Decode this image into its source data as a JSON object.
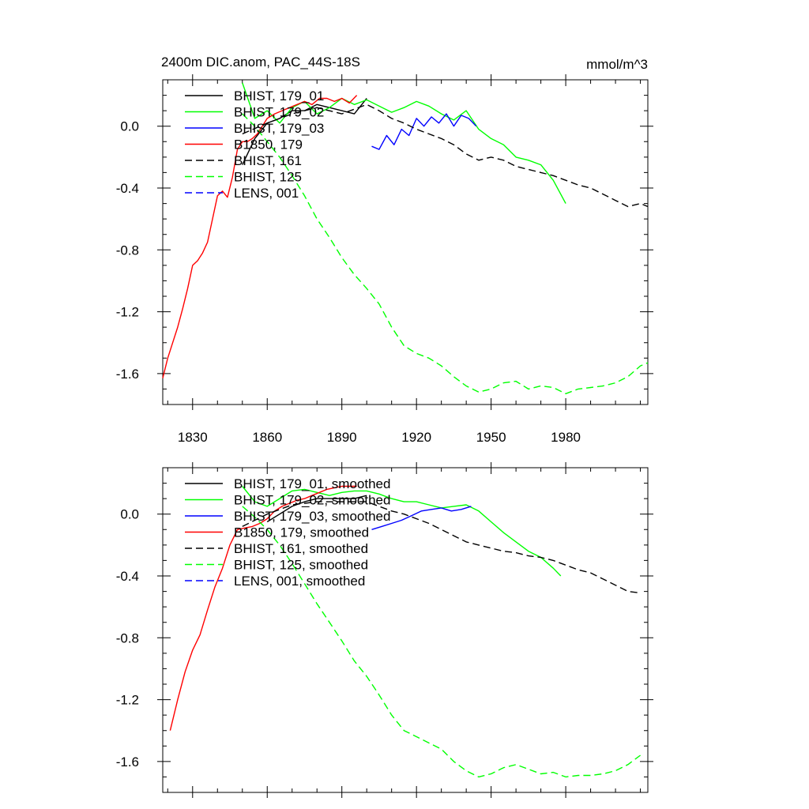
{
  "colors": {
    "black": "#000000",
    "green": "#00ff00",
    "blue": "#0000ff",
    "red": "#ff0000"
  },
  "chart_data": [
    {
      "type": "line",
      "title": "2400m DIC.anom, PAC_44S-18S",
      "units": "mmol/m^3",
      "xlim": [
        1818,
        2013
      ],
      "ylim": [
        -1.8,
        0.3
      ],
      "xticks": [
        1830,
        1860,
        1890,
        1920,
        1950,
        1980
      ],
      "xtick_labels": [
        "1830",
        "1860",
        "1890",
        "1920",
        "1950",
        "1980"
      ],
      "yticks": [
        0.0,
        -0.4,
        -0.8,
        -1.2,
        -1.6
      ],
      "ytick_labels": [
        "0.0",
        "-0.4",
        "-0.8",
        "-1.2",
        "-1.6"
      ],
      "series": [
        {
          "name": "BHIST, 179_01",
          "color": "#000000",
          "dash": "solid",
          "x": [
            1850,
            1855,
            1860,
            1865,
            1870,
            1875,
            1880,
            1885,
            1890,
            1895,
            1900
          ],
          "y": [
            -0.25,
            -0.08,
            0.02,
            0.05,
            0.1,
            0.1,
            0.14,
            0.12,
            0.1,
            0.08,
            0.18
          ]
        },
        {
          "name": "BHIST, 179_02",
          "color": "#00ff00",
          "dash": "solid",
          "x": [
            1850,
            1855,
            1860,
            1865,
            1870,
            1875,
            1880,
            1885,
            1890,
            1895,
            1900,
            1905,
            1910,
            1915,
            1920,
            1925,
            1930,
            1935,
            1940,
            1945,
            1950,
            1955,
            1960,
            1965,
            1970,
            1975,
            1980
          ],
          "y": [
            0.28,
            0.05,
            0.1,
            0.02,
            0.12,
            0.16,
            0.08,
            0.12,
            0.18,
            0.14,
            0.17,
            0.13,
            0.09,
            0.12,
            0.16,
            0.13,
            0.08,
            0.04,
            0.1,
            -0.02,
            -0.08,
            -0.12,
            -0.2,
            -0.22,
            -0.25,
            -0.35,
            -0.5
          ]
        },
        {
          "name": "BHIST, 179_03",
          "color": "#0000ff",
          "dash": "solid",
          "x": [
            1902,
            1905,
            1908,
            1911,
            1914,
            1917,
            1920,
            1923,
            1926,
            1929,
            1932,
            1935,
            1938,
            1941,
            1944
          ],
          "y": [
            -0.13,
            -0.15,
            -0.06,
            -0.12,
            -0.02,
            -0.06,
            0.05,
            0.0,
            0.06,
            0.02,
            0.08,
            0.0,
            0.07,
            0.05,
            0.0
          ]
        },
        {
          "name": "B1850, 179",
          "color": "#ff0000",
          "dash": "solid",
          "x": [
            1818,
            1820,
            1822,
            1824,
            1826,
            1828,
            1830,
            1832,
            1834,
            1836,
            1838,
            1840,
            1842,
            1844,
            1846,
            1848,
            1850,
            1852,
            1854,
            1856,
            1858,
            1860,
            1863,
            1866,
            1869,
            1872,
            1875,
            1878,
            1881,
            1884,
            1887,
            1890,
            1893,
            1896
          ],
          "y": [
            -1.63,
            -1.5,
            -1.4,
            -1.3,
            -1.18,
            -1.05,
            -0.9,
            -0.87,
            -0.82,
            -0.75,
            -0.6,
            -0.45,
            -0.42,
            -0.46,
            -0.33,
            -0.15,
            -0.1,
            -0.1,
            -0.08,
            -0.05,
            0.0,
            0.05,
            0.08,
            0.1,
            0.12,
            0.14,
            0.16,
            0.14,
            0.18,
            0.18,
            0.16,
            0.18,
            0.15,
            0.2
          ]
        },
        {
          "name": "BHIST, 161",
          "color": "#000000",
          "dash": "dashed",
          "x": [
            1850,
            1860,
            1870,
            1880,
            1890,
            1900,
            1905,
            1910,
            1915,
            1920,
            1925,
            1930,
            1935,
            1940,
            1945,
            1950,
            1955,
            1960,
            1965,
            1970,
            1975,
            1980,
            1985,
            1990,
            1995,
            2000,
            2005,
            2010,
            2013
          ],
          "y": [
            -0.05,
            0.02,
            0.08,
            0.12,
            0.08,
            0.14,
            0.1,
            0.05,
            0.02,
            -0.02,
            -0.05,
            -0.08,
            -0.12,
            -0.18,
            -0.22,
            -0.2,
            -0.22,
            -0.26,
            -0.28,
            -0.3,
            -0.32,
            -0.35,
            -0.38,
            -0.4,
            -0.44,
            -0.48,
            -0.52,
            -0.5,
            -0.52
          ]
        },
        {
          "name": "BHIST, 125",
          "color": "#00ff00",
          "dash": "dashed",
          "x": [
            1850,
            1855,
            1860,
            1865,
            1870,
            1875,
            1880,
            1885,
            1890,
            1895,
            1900,
            1905,
            1910,
            1915,
            1920,
            1925,
            1930,
            1935,
            1940,
            1945,
            1950,
            1955,
            1960,
            1965,
            1970,
            1975,
            1980,
            1985,
            1990,
            1995,
            2000,
            2005,
            2010,
            2013
          ],
          "y": [
            0.08,
            0.0,
            -0.1,
            -0.2,
            -0.32,
            -0.45,
            -0.6,
            -0.72,
            -0.85,
            -0.96,
            -1.05,
            -1.15,
            -1.3,
            -1.42,
            -1.47,
            -1.5,
            -1.55,
            -1.62,
            -1.68,
            -1.72,
            -1.7,
            -1.66,
            -1.65,
            -1.7,
            -1.68,
            -1.69,
            -1.73,
            -1.7,
            -1.69,
            -1.68,
            -1.66,
            -1.62,
            -1.55,
            -1.53
          ]
        },
        {
          "name": "LENS, 001",
          "color": "#0000ff",
          "dash": "dashed",
          "x": [],
          "y": []
        }
      ]
    },
    {
      "type": "line",
      "title": "",
      "units": "",
      "xlim": [
        1818,
        2013
      ],
      "ylim": [
        -1.8,
        0.3
      ],
      "xticks": [
        1830,
        1860,
        1890,
        1920,
        1950,
        1980
      ],
      "xtick_labels": [],
      "yticks": [
        0.0,
        -0.4,
        -0.8,
        -1.2,
        -1.6
      ],
      "ytick_labels": [
        "0.0",
        "-0.4",
        "-0.8",
        "-1.2",
        "-1.6"
      ],
      "series": [
        {
          "name": "BHIST, 179_01, smoothed",
          "color": "#000000",
          "dash": "solid",
          "x": [
            1860,
            1865,
            1870,
            1875,
            1880,
            1885,
            1890,
            1895,
            1900
          ],
          "y": [
            -0.05,
            0.0,
            0.05,
            0.08,
            0.1,
            0.1,
            0.1,
            0.1,
            0.12
          ]
        },
        {
          "name": "BHIST, 179_02, smoothed",
          "color": "#00ff00",
          "dash": "solid",
          "x": [
            1850,
            1855,
            1860,
            1865,
            1870,
            1875,
            1880,
            1885,
            1890,
            1895,
            1900,
            1905,
            1910,
            1915,
            1920,
            1925,
            1930,
            1935,
            1940,
            1945,
            1950,
            1955,
            1960,
            1965,
            1970,
            1975,
            1978
          ],
          "y": [
            0.18,
            0.08,
            0.05,
            0.1,
            0.15,
            0.16,
            0.14,
            0.12,
            0.14,
            0.15,
            0.15,
            0.13,
            0.1,
            0.08,
            0.08,
            0.06,
            0.04,
            0.05,
            0.06,
            0.02,
            -0.05,
            -0.12,
            -0.18,
            -0.24,
            -0.28,
            -0.35,
            -0.4
          ]
        },
        {
          "name": "BHIST, 179_03, smoothed",
          "color": "#0000ff",
          "dash": "solid",
          "x": [
            1902,
            1906,
            1910,
            1914,
            1918,
            1922,
            1926,
            1930,
            1934,
            1938,
            1942
          ],
          "y": [
            -0.1,
            -0.08,
            -0.06,
            -0.04,
            -0.01,
            0.02,
            0.03,
            0.04,
            0.02,
            0.03,
            0.05
          ]
        },
        {
          "name": "B1850, 179, smoothed",
          "color": "#ff0000",
          "dash": "solid",
          "x": [
            1821,
            1824,
            1827,
            1830,
            1833,
            1836,
            1839,
            1842,
            1845,
            1848,
            1851,
            1854,
            1857,
            1860,
            1863,
            1866,
            1869,
            1872,
            1875,
            1878,
            1881,
            1884,
            1887,
            1890,
            1893,
            1896
          ],
          "y": [
            -1.4,
            -1.2,
            -1.02,
            -0.88,
            -0.78,
            -0.62,
            -0.47,
            -0.35,
            -0.2,
            -0.1,
            -0.09,
            -0.08,
            -0.06,
            -0.03,
            0.02,
            0.05,
            0.07,
            0.09,
            0.1,
            0.12,
            0.14,
            0.16,
            0.17,
            0.18,
            0.18,
            0.18
          ]
        },
        {
          "name": "BHIST, 161, smoothed",
          "color": "#000000",
          "dash": "dashed",
          "x": [
            1850,
            1860,
            1870,
            1880,
            1890,
            1900,
            1905,
            1910,
            1915,
            1920,
            1925,
            1930,
            1935,
            1940,
            1945,
            1950,
            1955,
            1960,
            1965,
            1970,
            1975,
            1980,
            1985,
            1990,
            1995,
            2000,
            2005,
            2010
          ],
          "y": [
            -0.08,
            0.0,
            0.06,
            0.08,
            0.08,
            0.08,
            0.05,
            0.02,
            0.0,
            -0.03,
            -0.06,
            -0.1,
            -0.14,
            -0.18,
            -0.2,
            -0.22,
            -0.24,
            -0.25,
            -0.27,
            -0.28,
            -0.3,
            -0.33,
            -0.36,
            -0.38,
            -0.42,
            -0.46,
            -0.5,
            -0.51
          ]
        },
        {
          "name": "BHIST, 125, smoothed",
          "color": "#00ff00",
          "dash": "dashed",
          "x": [
            1850,
            1855,
            1860,
            1865,
            1870,
            1875,
            1880,
            1885,
            1890,
            1895,
            1900,
            1905,
            1910,
            1915,
            1920,
            1925,
            1930,
            1935,
            1940,
            1945,
            1950,
            1955,
            1960,
            1965,
            1970,
            1975,
            1980,
            1985,
            1990,
            1995,
            2000,
            2005,
            2010
          ],
          "y": [
            0.05,
            -0.02,
            -0.1,
            -0.2,
            -0.32,
            -0.45,
            -0.58,
            -0.7,
            -0.82,
            -0.95,
            -1.05,
            -1.17,
            -1.3,
            -1.4,
            -1.44,
            -1.48,
            -1.52,
            -1.6,
            -1.66,
            -1.7,
            -1.68,
            -1.64,
            -1.62,
            -1.65,
            -1.68,
            -1.67,
            -1.7,
            -1.69,
            -1.69,
            -1.68,
            -1.66,
            -1.62,
            -1.56
          ]
        },
        {
          "name": "LENS, 001, smoothed",
          "color": "#0000ff",
          "dash": "dashed",
          "x": [],
          "y": []
        }
      ]
    }
  ]
}
